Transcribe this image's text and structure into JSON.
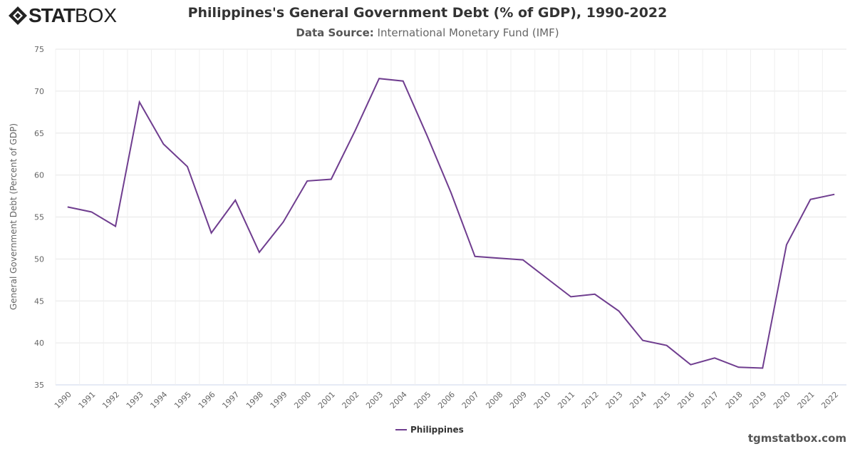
{
  "logo": {
    "text_bold": "STAT",
    "text_light": "BOX"
  },
  "header": {
    "title": "Philippines's General Government Debt (% of GDP), 1990-2022",
    "source_label": "Data Source:",
    "source_value": "International Monetary Fund (IMF)"
  },
  "footer": {
    "site": "tgmstatbox.com"
  },
  "chart_data": {
    "type": "line",
    "title": "Philippines's General Government Debt (% of GDP), 1990-2022",
    "xlabel": "",
    "ylabel": "General Government Debt (Percent of GDP)",
    "ylim": [
      35,
      75
    ],
    "yticks": [
      35,
      40,
      45,
      50,
      55,
      60,
      65,
      70,
      75
    ],
    "grid": true,
    "legend": "bottom-center",
    "categories": [
      "1990",
      "1991",
      "1992",
      "1993",
      "1994",
      "1995",
      "1996",
      "1997",
      "1998",
      "1999",
      "2000",
      "2001",
      "2002",
      "2003",
      "2004",
      "2005",
      "2006",
      "2007",
      "2008",
      "2009",
      "2010",
      "2011",
      "2012",
      "2013",
      "2014",
      "2015",
      "2016",
      "2017",
      "2018",
      "2019",
      "2020",
      "2021",
      "2022"
    ],
    "series": [
      {
        "name": "Philippines",
        "color": "#6f3d8f",
        "values": [
          56.2,
          55.6,
          53.9,
          68.7,
          63.7,
          61.0,
          53.1,
          57.0,
          50.8,
          54.4,
          59.3,
          59.5,
          65.3,
          71.5,
          71.2,
          64.7,
          57.9,
          50.3,
          50.1,
          49.9,
          47.7,
          45.5,
          45.8,
          43.8,
          40.3,
          39.7,
          37.4,
          38.2,
          37.1,
          37.0,
          51.7,
          57.1,
          57.7
        ]
      }
    ]
  }
}
